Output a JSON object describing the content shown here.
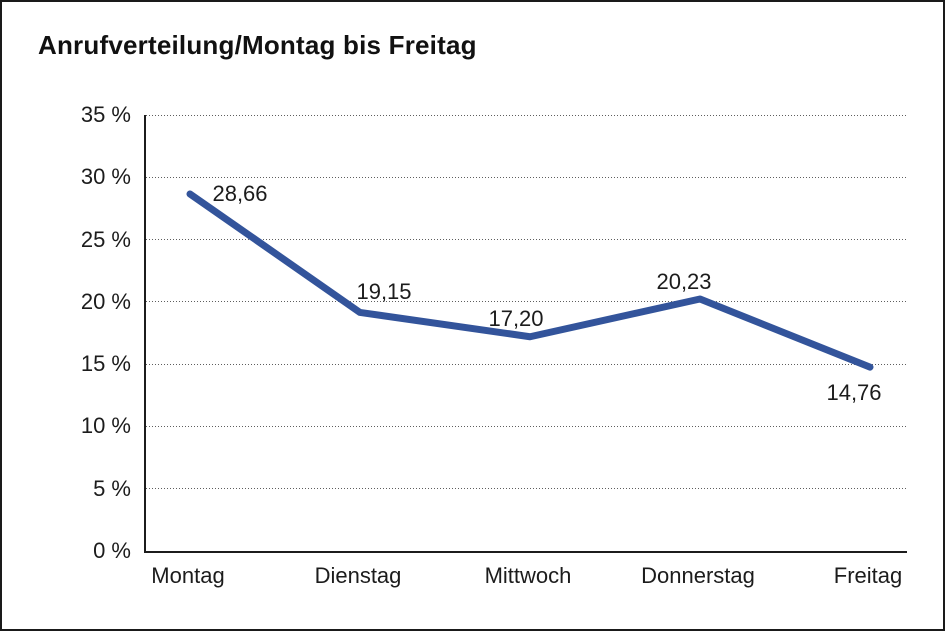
{
  "chart_data": {
    "type": "line",
    "title": "Anrufverteilung/Montag bis Freitag",
    "categories": [
      "Montag",
      "Dienstag",
      "Mittwoch",
      "Donnerstag",
      "Freitag"
    ],
    "values": [
      28.66,
      19.15,
      17.2,
      20.23,
      14.76
    ],
    "point_labels": [
      "28,66",
      "19,15",
      "17,20",
      "20,23",
      "14,76"
    ],
    "xlabel": "",
    "ylabel": "",
    "ylim": [
      0,
      35
    ],
    "ytick_step": 5,
    "ytick_labels_top_to_bottom": [
      "35 %",
      "30 %",
      "25 %",
      "20 %",
      "15 %",
      "10 %",
      "5 %",
      "0 %"
    ],
    "grid": "horizontal-dotted",
    "legend": "none",
    "line_color": "#33549B",
    "line_width": 7,
    "label_offsets_dx_dy": [
      [
        52,
        0
      ],
      [
        26,
        -20
      ],
      [
        -12,
        -18
      ],
      [
        -14,
        -17
      ],
      [
        -14,
        26
      ]
    ]
  },
  "frame": {
    "border_color": "#1a1a1a",
    "background_color": "#ffffff"
  }
}
